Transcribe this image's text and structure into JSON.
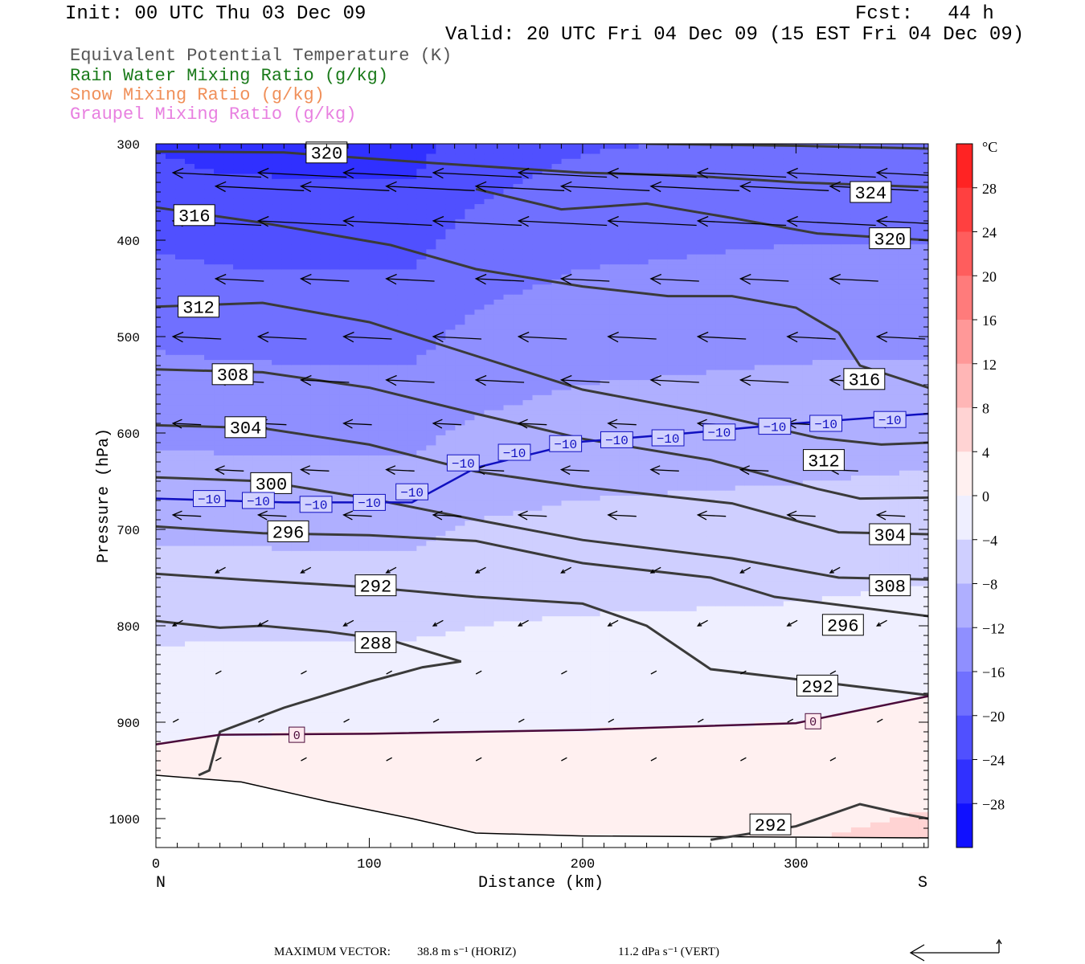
{
  "header": {
    "init": "Init: 00 UTC Thu 03 Dec 09",
    "fcst": "Fcst:   44 h",
    "valid": "Valid: 20 UTC Fri 04 Dec 09 (15 EST Fri 04 Dec 09)"
  },
  "legend": [
    {
      "text": "Equivalent Potential Temperature (K)",
      "color": "#555555"
    },
    {
      "text": "Rain Water Mixing Ratio (g/kg)",
      "color": "#1a7a1a"
    },
    {
      "text": "Snow Mixing Ratio (g/kg)",
      "color": "#f0905a"
    },
    {
      "text": "Graupel Mixing Ratio (g/kg)",
      "color": "#e880e0"
    }
  ],
  "footer": {
    "label": "MAXIMUM VECTOR:",
    "horiz": "38.8 m s⁻¹ (HORIZ)",
    "vert": "11.2 dPa s⁻¹ (VERT)"
  },
  "chart_data": {
    "type": "cross-section",
    "xlabel": "Distance (km)",
    "ylabel": "Pressure (hPa)",
    "xlim": [
      0,
      362
    ],
    "ylim": [
      1030,
      300
    ],
    "x_ticks": [
      0,
      100,
      200,
      300
    ],
    "y_ticks": [
      300,
      400,
      500,
      600,
      700,
      800,
      900,
      1000
    ],
    "x_end_labels": {
      "left": "N",
      "right": "S"
    },
    "colorbar": {
      "unit": "°C",
      "tick_labels": [
        "28",
        "24",
        "20",
        "16",
        "12",
        "8",
        "4",
        "0",
        "−4",
        "−8",
        "−12",
        "−16",
        "−20",
        "−24",
        "−28"
      ],
      "tick_values": [
        28,
        24,
        20,
        16,
        12,
        8,
        4,
        0,
        -4,
        -8,
        -12,
        -16,
        -20,
        -24,
        -28
      ],
      "range": [
        -32,
        32
      ]
    },
    "theta_e_contours": [
      {
        "label": "320",
        "points": [
          [
            0,
            308
          ],
          [
            60,
            309
          ],
          [
            130,
            320
          ],
          [
            200,
            330
          ],
          [
            250,
            333
          ],
          [
            300,
            340
          ],
          [
            362,
            345
          ]
        ]
      },
      {
        "label": "324",
        "points": [
          [
            230,
            300
          ],
          [
            300,
            302
          ],
          [
            362,
            305
          ]
        ]
      },
      {
        "label": "316",
        "points": [
          [
            0,
            366
          ],
          [
            50,
            382
          ],
          [
            110,
            405
          ],
          [
            150,
            430
          ],
          [
            200,
            448
          ],
          [
            240,
            458
          ],
          [
            270,
            458
          ],
          [
            300,
            470
          ],
          [
            320,
            496
          ],
          [
            330,
            530
          ],
          [
            362,
            553
          ]
        ]
      },
      {
        "label": "320",
        "points": [
          [
            150,
            347
          ],
          [
            190,
            368
          ],
          [
            230,
            362
          ],
          [
            270,
            377
          ],
          [
            310,
            393
          ],
          [
            362,
            400
          ]
        ]
      },
      {
        "label": "312",
        "points": [
          [
            0,
            469
          ],
          [
            50,
            465
          ],
          [
            100,
            485
          ],
          [
            150,
            520
          ],
          [
            200,
            555
          ],
          [
            260,
            580
          ],
          [
            310,
            605
          ],
          [
            340,
            612
          ],
          [
            362,
            610
          ]
        ]
      },
      {
        "label": "308",
        "points": [
          [
            0,
            534
          ],
          [
            50,
            537
          ],
          [
            100,
            553
          ],
          [
            150,
            580
          ],
          [
            200,
            606
          ],
          [
            260,
            628
          ],
          [
            310,
            658
          ],
          [
            330,
            668
          ],
          [
            362,
            667
          ]
        ]
      },
      {
        "label": "304",
        "points": [
          [
            0,
            592
          ],
          [
            50,
            595
          ],
          [
            100,
            612
          ],
          [
            150,
            640
          ],
          [
            200,
            656
          ],
          [
            270,
            673
          ],
          [
            320,
            703
          ],
          [
            362,
            705
          ]
        ]
      },
      {
        "label": "300",
        "points": [
          [
            0,
            646
          ],
          [
            50,
            650
          ],
          [
            100,
            668
          ],
          [
            150,
            690
          ],
          [
            200,
            711
          ],
          [
            270,
            730
          ],
          [
            320,
            750
          ],
          [
            362,
            752
          ]
        ]
      },
      {
        "label": "296",
        "points": [
          [
            0,
            697
          ],
          [
            50,
            704
          ],
          [
            100,
            706
          ],
          [
            150,
            712
          ],
          [
            200,
            735
          ],
          [
            260,
            750
          ],
          [
            290,
            770
          ],
          [
            362,
            790
          ]
        ]
      },
      {
        "label": "292",
        "points": [
          [
            0,
            746
          ],
          [
            40,
            752
          ],
          [
            100,
            760
          ],
          [
            150,
            770
          ],
          [
            200,
            777
          ],
          [
            230,
            800
          ],
          [
            260,
            845
          ],
          [
            310,
            858
          ],
          [
            362,
            872
          ]
        ]
      },
      {
        "label": "288",
        "points": [
          [
            0,
            795
          ],
          [
            30,
            802
          ],
          [
            50,
            800
          ],
          [
            80,
            806
          ],
          [
            110,
            815
          ],
          [
            143,
            837
          ],
          [
            125,
            843
          ],
          [
            100,
            858
          ],
          [
            60,
            885
          ],
          [
            30,
            910
          ],
          [
            25,
            950
          ],
          [
            20,
            955
          ]
        ]
      },
      {
        "label": "292",
        "points": [
          [
            260,
            1022
          ],
          [
            300,
            1008
          ],
          [
            330,
            985
          ],
          [
            350,
            995
          ],
          [
            362,
            1000
          ]
        ]
      }
    ],
    "temperature_contours": [
      {
        "label": "-10",
        "points": [
          [
            0,
            668
          ],
          [
            60,
            672
          ],
          [
            120,
            672
          ],
          [
            150,
            636
          ],
          [
            200,
            609
          ],
          [
            250,
            600
          ],
          [
            300,
            590
          ],
          [
            362,
            580
          ]
        ]
      },
      {
        "label": "0",
        "points": [
          [
            0,
            923
          ],
          [
            30,
            913
          ],
          [
            100,
            912
          ],
          [
            200,
            908
          ],
          [
            300,
            901
          ],
          [
            362,
            873
          ]
        ]
      }
    ],
    "terrain_hPa": [
      [
        0,
        955
      ],
      [
        40,
        962
      ],
      [
        80,
        982
      ],
      [
        120,
        1000
      ],
      [
        150,
        1015
      ],
      [
        200,
        1018
      ],
      [
        362,
        1020
      ]
    ]
  }
}
